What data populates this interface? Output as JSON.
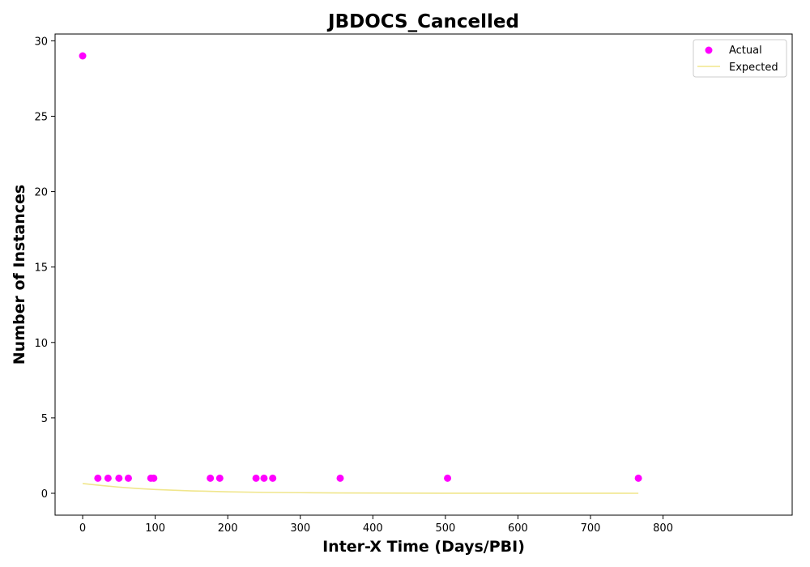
{
  "chart_data": {
    "type": "scatter",
    "title": "JBDOCS_Cancelled",
    "xlabel": "Inter-X Time (Days/PBI)",
    "ylabel": "Number of Instances",
    "xlim": [
      -38,
      978
    ],
    "ylim": [
      -1.45,
      30.45
    ],
    "xticks": [
      0,
      100,
      200,
      300,
      400,
      500,
      600,
      700,
      800
    ],
    "yticks": [
      0,
      5,
      10,
      15,
      20,
      25,
      30
    ],
    "grid": false,
    "legend": {
      "position": "top-right",
      "entries": [
        "Actual",
        "Expected"
      ]
    },
    "series": [
      {
        "name": "Actual",
        "kind": "scatter",
        "color": "#ff00ff",
        "points": [
          [
            0,
            29
          ],
          [
            21,
            1
          ],
          [
            35,
            1
          ],
          [
            50,
            1
          ],
          [
            63,
            1
          ],
          [
            94,
            1
          ],
          [
            98,
            1
          ],
          [
            176,
            1
          ],
          [
            189,
            1
          ],
          [
            239,
            1
          ],
          [
            250,
            1
          ],
          [
            262,
            1
          ],
          [
            355,
            1
          ],
          [
            503,
            1
          ],
          [
            766,
            1
          ]
        ]
      },
      {
        "name": "Expected",
        "kind": "line",
        "color": "#f0e68c",
        "points": [
          [
            0,
            0.65
          ],
          [
            25,
            0.52
          ],
          [
            50,
            0.41
          ],
          [
            75,
            0.32
          ],
          [
            100,
            0.25
          ],
          [
            150,
            0.16
          ],
          [
            200,
            0.1
          ],
          [
            250,
            0.06
          ],
          [
            300,
            0.04
          ],
          [
            350,
            0.025
          ],
          [
            400,
            0.015
          ],
          [
            500,
            0.006
          ],
          [
            600,
            0.002
          ],
          [
            700,
            0.001
          ],
          [
            766,
            0.0005
          ]
        ]
      }
    ]
  }
}
